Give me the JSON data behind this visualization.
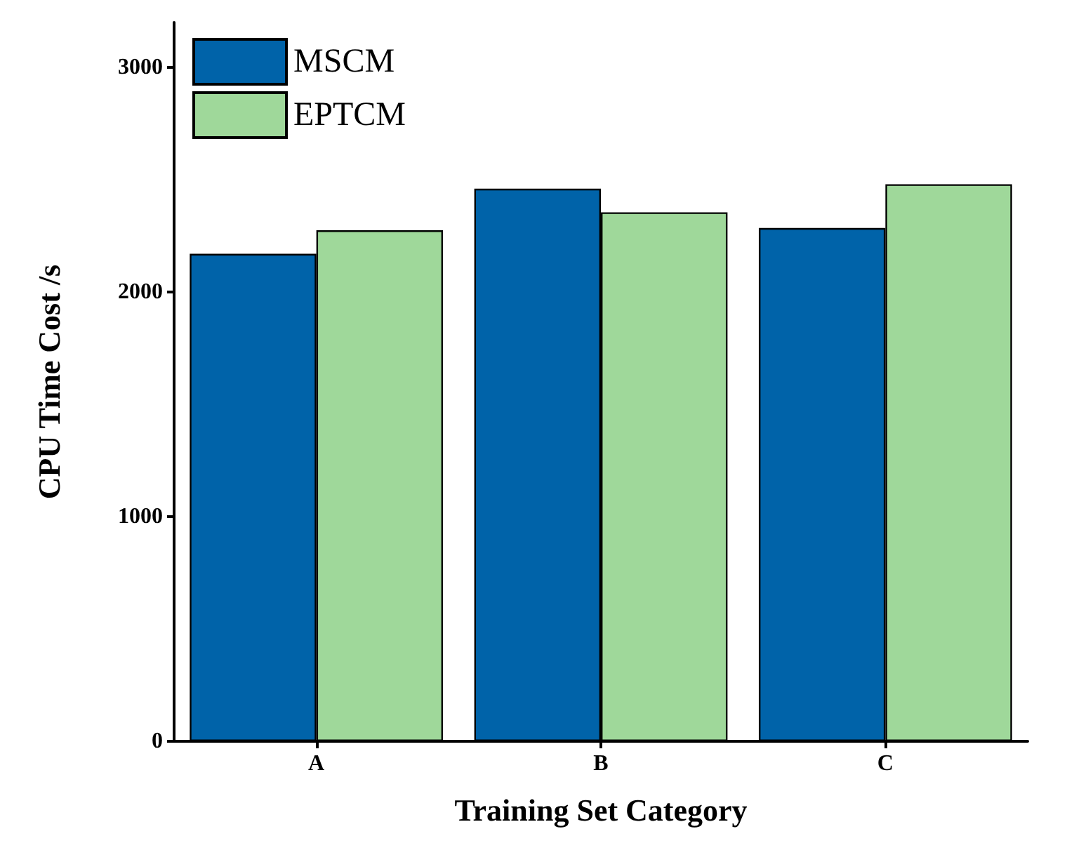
{
  "chart_data": {
    "type": "bar",
    "xlabel": "Training Set Category",
    "ylabel": "CPU Time Cost /s",
    "categories": [
      "A",
      "B",
      "C"
    ],
    "series": [
      {
        "name": "MSCM",
        "color": "#0063a9",
        "values": [
          2170,
          2460,
          2285
        ]
      },
      {
        "name": "EPTCM",
        "color": "#9fd89a",
        "values": [
          2275,
          2355,
          2480
        ]
      }
    ],
    "ylim": [
      0,
      3200
    ],
    "yticks": [
      0,
      1000,
      2000,
      3000
    ],
    "grid": false,
    "legend": "top left"
  }
}
